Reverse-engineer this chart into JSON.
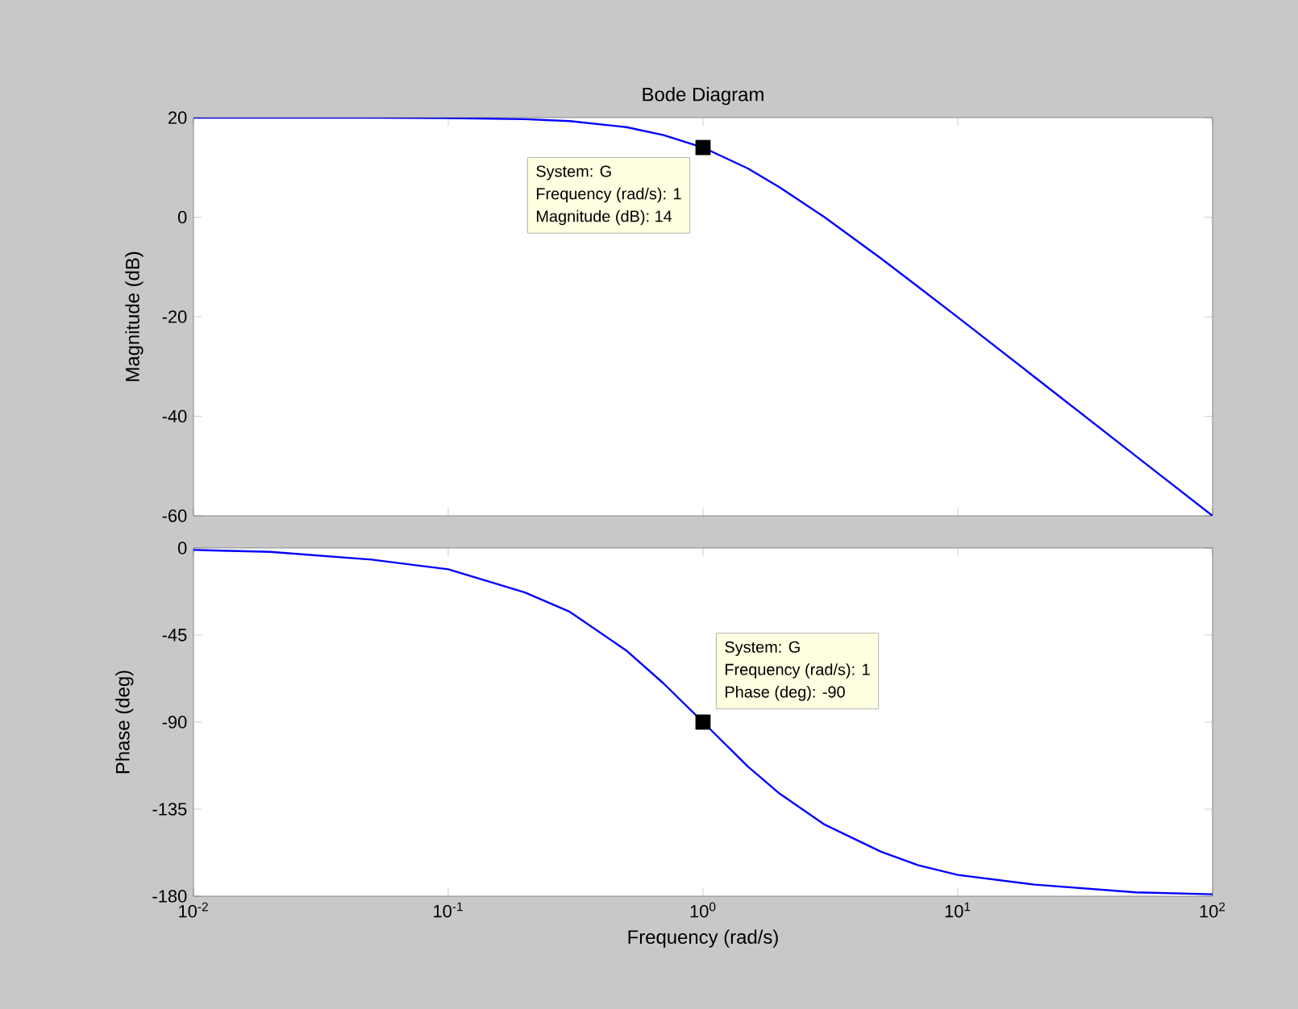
{
  "chart_data": [
    {
      "type": "line",
      "title": "Bode Diagram",
      "ylabel": "Magnitude (dB)",
      "x": [
        0.01,
        0.02,
        0.05,
        0.1,
        0.2,
        0.3,
        0.5,
        0.7,
        1,
        1.5,
        2,
        3,
        5,
        7,
        10,
        20,
        50,
        100
      ],
      "series": [
        {
          "color": "#0000ff",
          "values": [
            20,
            20,
            20,
            19.9,
            19.7,
            19.3,
            18.1,
            16.5,
            14,
            9.8,
            6,
            0,
            -8.3,
            -14,
            -20.1,
            -32.1,
            -48,
            -60
          ]
        },
        {
          "type": "scatter",
          "marker": "square",
          "color": "#000000",
          "x": [
            1
          ],
          "values": [
            14
          ]
        }
      ],
      "xlim": [
        0.01,
        100
      ],
      "ylim": [
        -60,
        20
      ],
      "xticks": [
        {
          "value": 0.01,
          "label": null
        },
        {
          "value": 0.1,
          "label": null
        },
        {
          "value": 1,
          "label": null
        },
        {
          "value": 10,
          "label": null
        },
        {
          "value": 100,
          "label": null
        }
      ],
      "yticks": [
        -60,
        -40,
        -20,
        0,
        20
      ],
      "log": "x",
      "tick_labels": "y",
      "marker": "none",
      "line_style": "solid",
      "annotations": [
        "System: G",
        "Frequency (rad/s): 1",
        "Magnitude (dB): 14"
      ]
    },
    {
      "type": "line",
      "xlabel": "Frequency  (rad/s)",
      "ylabel": "Phase (deg)",
      "x": [
        0.01,
        0.02,
        0.05,
        0.1,
        0.2,
        0.3,
        0.5,
        0.7,
        1,
        1.5,
        2,
        3,
        5,
        7,
        10,
        20,
        50,
        100
      ],
      "series": [
        {
          "color": "#0000ff",
          "values": [
            -1,
            -2,
            -6,
            -11,
            -23,
            -33,
            -53,
            -70,
            -90,
            -113,
            -127,
            -143,
            -157,
            -164,
            -169,
            -174,
            -178,
            -179
          ]
        },
        {
          "type": "scatter",
          "marker": "square",
          "color": "#000000",
          "x": [
            1
          ],
          "values": [
            -90
          ]
        }
      ],
      "xlim": [
        0.01,
        100
      ],
      "ylim": [
        -180,
        0
      ],
      "xticks": [
        {
          "value": 0.01,
          "label": "10$^{-2}$"
        },
        {
          "value": 0.1,
          "label": "10$^{-1}$"
        },
        {
          "value": 1,
          "label": "10$^{0}$"
        },
        {
          "value": 10,
          "label": "10$^{1}$"
        },
        {
          "value": 100,
          "label": "10$^{2}$"
        }
      ],
      "yticks": [
        -180,
        -135,
        -90,
        -45,
        0
      ],
      "log": "x",
      "marker": "none",
      "line_style": "solid",
      "annotations": [
        "System: G",
        "Frequency (rad/s): 1",
        "Phase (deg): -90"
      ]
    }
  ]
}
